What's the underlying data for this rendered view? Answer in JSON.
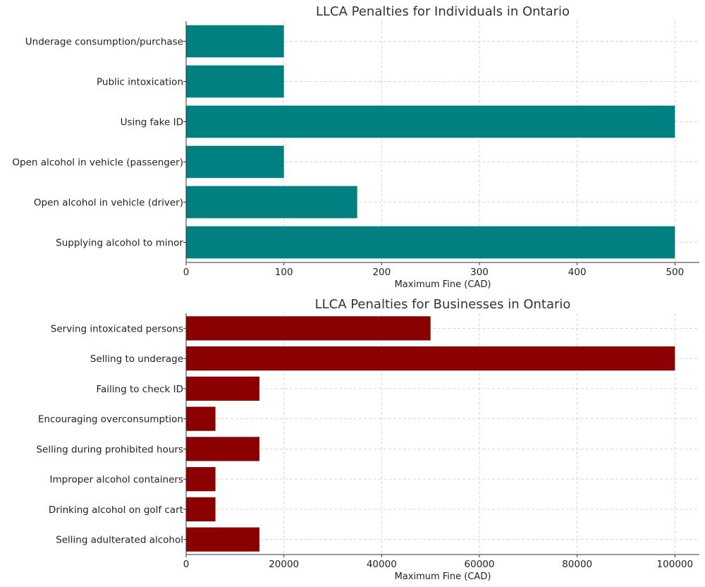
{
  "chart_data": [
    {
      "type": "bar",
      "orientation": "horizontal",
      "title": "LLCA Penalties for Individuals in Ontario",
      "xlabel": "Maximum Fine (CAD)",
      "ylabel": "",
      "categories": [
        "Underage consumption/purchase",
        "Public intoxication",
        "Using fake ID",
        "Open alcohol in vehicle (passenger)",
        "Open alcohol in vehicle (driver)",
        "Supplying alcohol to minor"
      ],
      "values": [
        100,
        100,
        500,
        100,
        175,
        500
      ],
      "xlim": [
        0,
        525
      ],
      "xticks": [
        0,
        100,
        200,
        300,
        400,
        500
      ],
      "xtick_labels": [
        "0",
        "100",
        "200",
        "300",
        "400",
        "500"
      ],
      "color": "#008080",
      "grid": true
    },
    {
      "type": "bar",
      "orientation": "horizontal",
      "title": "LLCA Penalties for Businesses in Ontario",
      "xlabel": "Maximum Fine (CAD)",
      "ylabel": "",
      "categories": [
        "Serving intoxicated persons",
        "Selling to underage",
        "Failing to check ID",
        "Encouraging overconsumption",
        "Selling during prohibited hours",
        "Improper alcohol containers",
        "Drinking alcohol on golf cart",
        "Selling adulterated alcohol"
      ],
      "values": [
        50000,
        100000,
        15000,
        6000,
        15000,
        6000,
        6000,
        15000
      ],
      "xlim": [
        0,
        105000
      ],
      "xticks": [
        0,
        20000,
        40000,
        60000,
        80000,
        100000
      ],
      "xtick_labels": [
        "0",
        "20000",
        "40000",
        "60000",
        "80000",
        "100000"
      ],
      "color": "#8b0000",
      "grid": true
    }
  ]
}
